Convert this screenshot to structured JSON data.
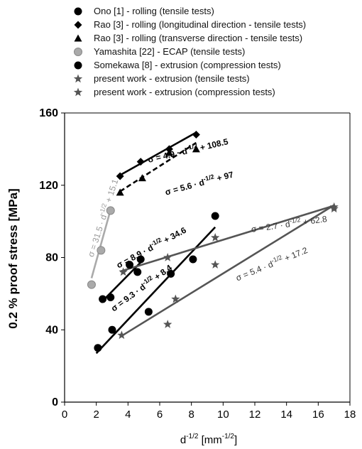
{
  "chart_data": {
    "type": "scatter",
    "xlabel": "d",
    "xlabel_sup": "-1/2",
    "xlabel_unit_open": " [mm",
    "xlabel_unit_sup": "-1/2",
    "xlabel_unit_close": "]",
    "ylabel": "0.2 % proof stress [MPa]",
    "xlim": [
      0,
      18
    ],
    "ylim": [
      0,
      160
    ],
    "xticks": [
      "0",
      "2",
      "4",
      "6",
      "8",
      "10",
      "12",
      "14",
      "16",
      "18"
    ],
    "yticks": [
      "0",
      "40",
      "80",
      "120",
      "160"
    ],
    "grid": false,
    "legend_position": "top",
    "series": [
      {
        "name": "Ono [1] - rolling (tensile tests)",
        "marker": "circle",
        "color": "#000000",
        "points": [
          [
            3.0,
            40
          ],
          [
            5.3,
            50
          ],
          [
            6.7,
            71
          ],
          [
            8.1,
            79
          ],
          [
            9.5,
            103
          ]
        ]
      },
      {
        "name": "Rao [3] - rolling (longitudinal direction - tensile tests)",
        "marker": "diamond",
        "color": "#000000",
        "points": [
          [
            3.5,
            125
          ],
          [
            4.8,
            133
          ],
          [
            6.6,
            140
          ],
          [
            8.3,
            148
          ]
        ]
      },
      {
        "name": "Rao [3] - rolling (transverse direction - tensile tests)",
        "marker": "triangle",
        "color": "#000000",
        "points": [
          [
            3.5,
            116
          ],
          [
            4.9,
            124
          ],
          [
            6.6,
            138
          ],
          [
            8.3,
            140
          ]
        ]
      },
      {
        "name": "Yamashita [22] - ECAP (tensile tests)",
        "marker": "circle",
        "color": "#aaaaaa",
        "points": [
          [
            1.7,
            65
          ],
          [
            2.3,
            84
          ],
          [
            2.9,
            106
          ]
        ]
      },
      {
        "name": "Somekawa [8] - extrusion (compression tests)",
        "marker": "circle",
        "color": "#000000",
        "points": [
          [
            2.1,
            30
          ],
          [
            2.4,
            57
          ],
          [
            2.9,
            58
          ],
          [
            4.1,
            76
          ],
          [
            4.6,
            72
          ],
          [
            4.8,
            79
          ]
        ]
      },
      {
        "name": "present work - extrusion (tensile tests)",
        "marker": "star",
        "color": "#555555",
        "points": [
          [
            3.7,
            72
          ],
          [
            6.5,
            80
          ],
          [
            9.5,
            91
          ],
          [
            17.0,
            107
          ]
        ]
      },
      {
        "name": "present work - extrusion (compression tests)",
        "marker": "star",
        "color": "#555555",
        "points": [
          [
            3.6,
            37
          ],
          [
            6.5,
            43
          ],
          [
            7.0,
            57
          ],
          [
            9.5,
            76
          ],
          [
            17.0,
            108
          ]
        ]
      }
    ],
    "fit_lines": [
      {
        "label": "σ = 4.9 · d",
        "sup": "-1/2",
        "rest": " + 108.5",
        "color": "#000000",
        "dash": false,
        "x": [
          3.5,
          8.3
        ],
        "y": [
          125.6,
          149.2
        ],
        "label_at": [
          5.3,
          132.5
        ],
        "rotate": -13
      },
      {
        "label": "σ = 5.6 · d",
        "sup": "-1/2",
        "rest": " + 97",
        "color": "#000000",
        "dash": true,
        "x": [
          3.5,
          8.3
        ],
        "y": [
          116.6,
          143.5
        ],
        "label_at": [
          6.4,
          114.5
        ],
        "rotate": -15
      },
      {
        "label": "σ = 31.5 · d",
        "sup": "-1/2",
        "rest": " + 15.1",
        "color": "#aaaaaa",
        "dash": false,
        "x": [
          1.7,
          2.95
        ],
        "y": [
          68.6,
          108.0
        ],
        "label_at": [
          1.8,
          80
        ],
        "rotate": -72
      },
      {
        "label": "σ = 8.9 · d",
        "sup": "-1/2",
        "rest": " + 34.6",
        "color": "#000000",
        "dash": false,
        "x": [
          2.3,
          4.9
        ],
        "y": [
          55.1,
          78.2
        ],
        "label_at": [
          3.4,
          74
        ],
        "rotate": -28
      },
      {
        "label": "σ = 9.3 · d",
        "sup": "-1/2",
        "rest": " + 8.4",
        "color": "#000000",
        "dash": false,
        "x": [
          2.0,
          9.5
        ],
        "y": [
          27.0,
          96.8
        ],
        "label_at": [
          3.1,
          50
        ],
        "rotate": -36
      },
      {
        "label": "σ = 2.7 · d",
        "sup": "-1/2",
        "rest": " + 62.8",
        "color": "#555555",
        "dash": false,
        "x": [
          3.5,
          17.0
        ],
        "y": [
          72.3,
          108.7
        ],
        "label_at": [
          11.8,
          94
        ],
        "rotate": -8
      },
      {
        "label": "σ = 5.4 · d",
        "sup": "-1/2",
        "rest": " + 17.2",
        "color": "#555555",
        "dash": false,
        "x": [
          3.5,
          17.0
        ],
        "y": [
          36.1,
          109.0
        ],
        "label_at": [
          10.9,
          67
        ],
        "rotate": -22
      }
    ]
  }
}
